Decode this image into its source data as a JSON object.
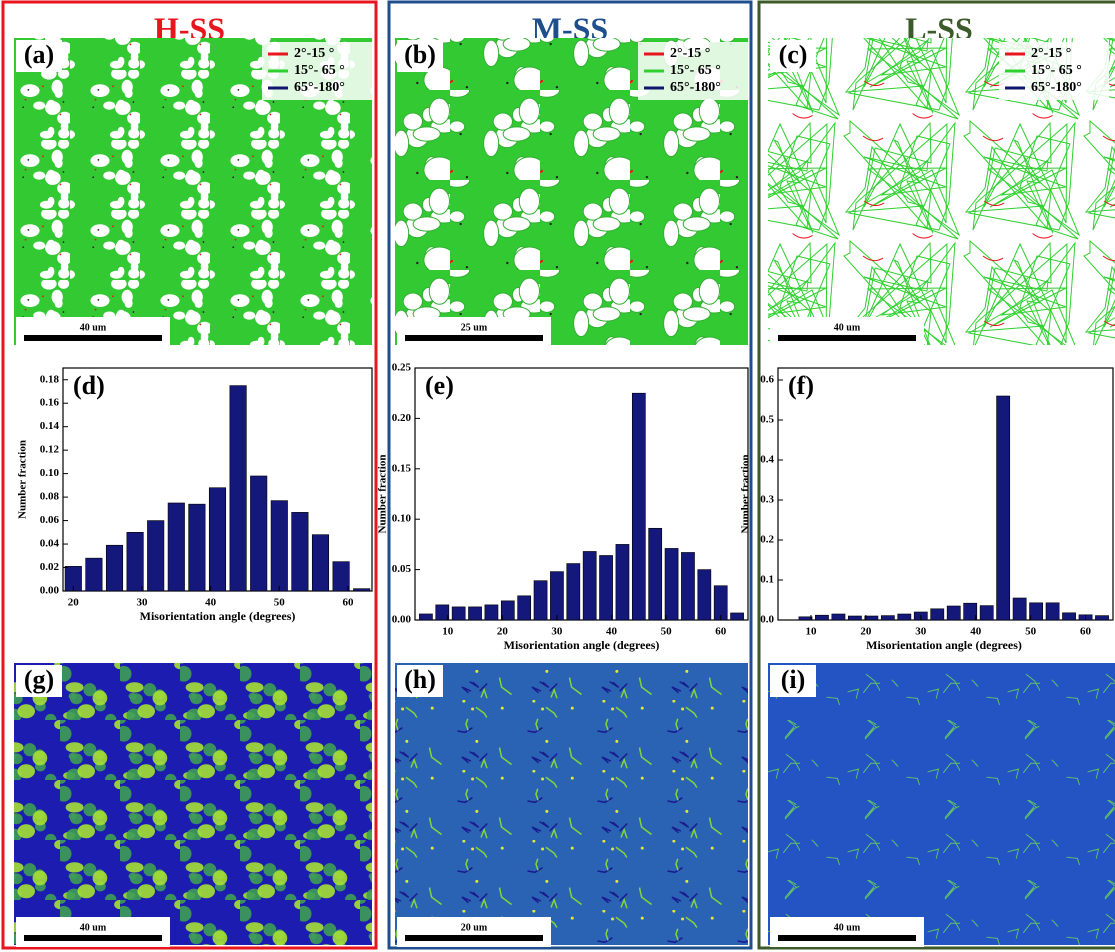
{
  "columns": [
    {
      "title": "H-SS",
      "color": "#e8141e",
      "map": {
        "label": "(a)",
        "scale": "40 um",
        "legend": [
          {
            "label": "2°-15 °",
            "color": "#e8141e"
          },
          {
            "label": "15°- 65 °",
            "color": "#2fd02f"
          },
          {
            "label": "65°-180°",
            "color": "#10166e"
          }
        ]
      },
      "kam": {
        "label": "(g)",
        "scale": "40 um"
      }
    },
    {
      "title": "M-SS",
      "color": "#1f4e8c",
      "map": {
        "label": "(b)",
        "scale": "25 um",
        "legend": [
          {
            "label": "2°-15 °",
            "color": "#e8141e"
          },
          {
            "label": "15°- 65 °",
            "color": "#2fd02f"
          },
          {
            "label": "65°-180°",
            "color": "#10166e"
          }
        ]
      },
      "kam": {
        "label": "(h)",
        "scale": "20 um"
      }
    },
    {
      "title": "L-SS",
      "color": "#3c5a2a",
      "map": {
        "label": "(c)",
        "scale": "40 um",
        "legend": [
          {
            "label": "2°-15 °",
            "color": "#e8141e"
          },
          {
            "label": "15°- 65 °",
            "color": "#2fd02f"
          },
          {
            "label": "65°-180°",
            "color": "#10166e"
          }
        ]
      },
      "kam": {
        "label": "(i)",
        "scale": "40 um"
      }
    }
  ],
  "chart_data": [
    {
      "type": "bar",
      "label": "(d)",
      "x_label": "Misorientation angle (degrees)",
      "y_label": "Number fraction",
      "color": "#14187a",
      "x": [
        20,
        23,
        26,
        29,
        32,
        35,
        38,
        41,
        44,
        47,
        50,
        53,
        56,
        59,
        62
      ],
      "values": [
        0.021,
        0.028,
        0.039,
        0.05,
        0.06,
        0.075,
        0.074,
        0.088,
        0.175,
        0.098,
        0.077,
        0.067,
        0.048,
        0.025,
        0.002
      ],
      "xlim": [
        18.5,
        63.5
      ],
      "xticks": [
        20,
        30,
        40,
        50,
        60
      ],
      "ylim": [
        0,
        0.19
      ],
      "yticks": [
        {
          "value": 0,
          "label": "0.00"
        },
        0.02,
        0.04,
        0.06,
        0.08,
        {
          "value": 0.1,
          "label": "0.10"
        },
        0.12,
        0.14,
        0.16,
        0.18
      ]
    },
    {
      "type": "bar",
      "label": "(e)",
      "x_label": "Misorientation angle (degrees)",
      "y_label": "Number fraction",
      "color": "#14187a",
      "x": [
        6,
        9,
        12,
        15,
        18,
        21,
        24,
        27,
        30,
        33,
        36,
        39,
        42,
        45,
        48,
        51,
        54,
        57,
        60,
        63
      ],
      "values": [
        0.006,
        0.015,
        0.013,
        0.013,
        0.015,
        0.019,
        0.024,
        0.039,
        0.048,
        0.056,
        0.068,
        0.064,
        0.075,
        0.225,
        0.091,
        0.071,
        0.067,
        0.05,
        0.034,
        0.007
      ],
      "xlim": [
        4,
        65
      ],
      "xticks": [
        10,
        20,
        30,
        40,
        50,
        60
      ],
      "ylim": [
        0,
        0.25
      ],
      "yticks": [
        {
          "value": 0,
          "label": "0.00"
        },
        0.05,
        {
          "value": 0.1,
          "label": "0.10"
        },
        0.15,
        {
          "value": 0.2,
          "label": "0.20"
        },
        0.25
      ]
    },
    {
      "type": "bar",
      "label": "(f)",
      "x_label": "Misorientation angle (degrees)",
      "y_label": "Number fraction",
      "color": "#14187a",
      "x": [
        9,
        12,
        15,
        18,
        21,
        24,
        27,
        30,
        33,
        36,
        39,
        42,
        45,
        48,
        51,
        54,
        57,
        60,
        63
      ],
      "values": [
        0.008,
        0.012,
        0.015,
        0.01,
        0.01,
        0.011,
        0.015,
        0.02,
        0.028,
        0.035,
        0.042,
        0.036,
        0.56,
        0.055,
        0.043,
        0.043,
        0.018,
        0.013,
        0.011
      ],
      "xlim": [
        4,
        65
      ],
      "xticks": [
        10,
        20,
        30,
        40,
        50,
        60
      ],
      "ylim": [
        0,
        0.63
      ],
      "yticks": [
        {
          "value": 0,
          "label": "0.0"
        },
        0.1,
        0.2,
        0.3,
        0.4,
        0.5,
        0.6
      ]
    }
  ]
}
